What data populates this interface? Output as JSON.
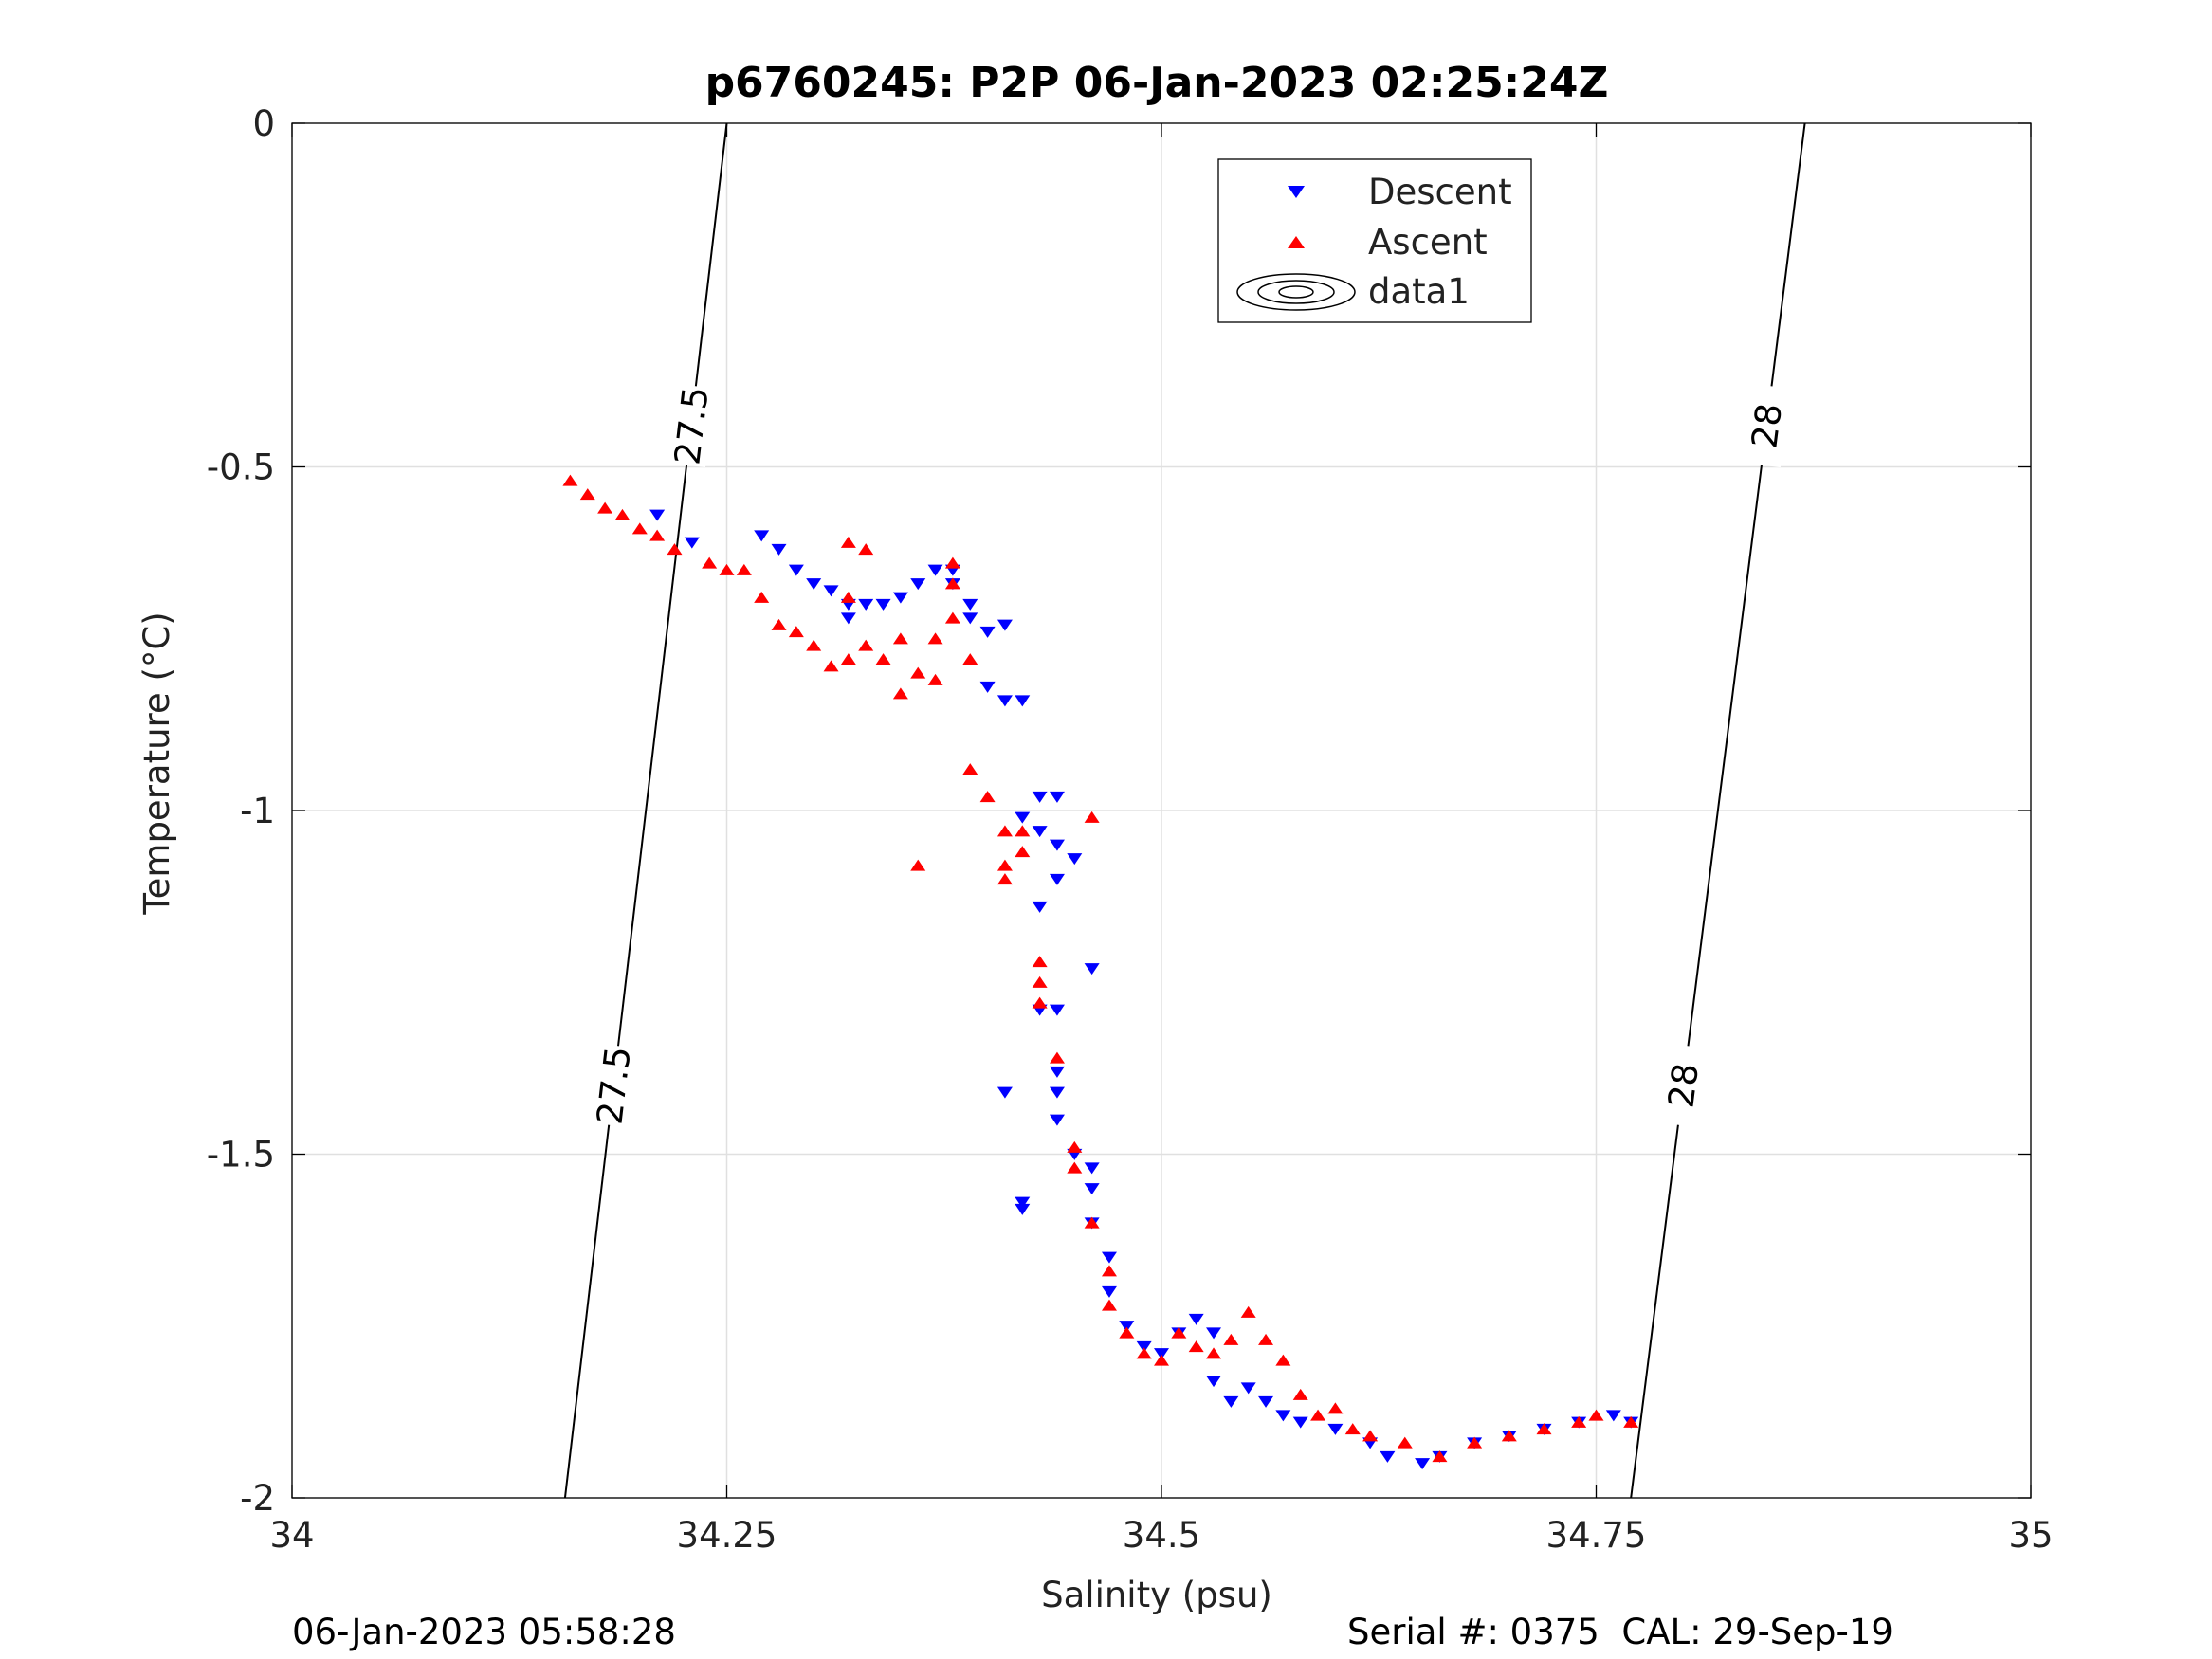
{
  "chart_data": {
    "type": "scatter",
    "title": "p6760245: P2P 06-Jan-2023 02:25:24Z",
    "xlabel": "Salinity (psu)",
    "ylabel": "Temperature (°C)",
    "xlim": [
      34,
      35
    ],
    "ylim": [
      -2,
      0
    ],
    "x_ticks": [
      34,
      34.25,
      34.5,
      34.75,
      35
    ],
    "x_tick_labels": [
      "34",
      "34.25",
      "34.5",
      "34.75",
      "35"
    ],
    "y_ticks": [
      0,
      -0.5,
      -1,
      -1.5,
      -2
    ],
    "y_tick_labels": [
      "0",
      "-0.5",
      "-1",
      "-1.5",
      "-2"
    ],
    "grid": true,
    "legend_position": "top-right",
    "series": [
      {
        "name": "Descent",
        "marker": "triangle-down",
        "color": "#0000ff",
        "points": [
          [
            34.21,
            -0.57
          ],
          [
            34.23,
            -0.61
          ],
          [
            34.27,
            -0.6
          ],
          [
            34.28,
            -0.62
          ],
          [
            34.29,
            -0.65
          ],
          [
            34.3,
            -0.67
          ],
          [
            34.31,
            -0.68
          ],
          [
            34.32,
            -0.7
          ],
          [
            34.32,
            -0.72
          ],
          [
            34.33,
            -0.7
          ],
          [
            34.34,
            -0.7
          ],
          [
            34.35,
            -0.69
          ],
          [
            34.36,
            -0.67
          ],
          [
            34.37,
            -0.65
          ],
          [
            34.38,
            -0.65
          ],
          [
            34.38,
            -0.67
          ],
          [
            34.39,
            -0.7
          ],
          [
            34.39,
            -0.72
          ],
          [
            34.4,
            -0.74
          ],
          [
            34.41,
            -0.73
          ],
          [
            34.4,
            -0.82
          ],
          [
            34.41,
            -0.84
          ],
          [
            34.42,
            -0.84
          ],
          [
            34.43,
            -0.98
          ],
          [
            34.44,
            -0.98
          ],
          [
            34.42,
            -1.01
          ],
          [
            34.43,
            -1.03
          ],
          [
            34.44,
            -1.05
          ],
          [
            34.45,
            -1.07
          ],
          [
            34.44,
            -1.1
          ],
          [
            34.43,
            -1.14
          ],
          [
            34.43,
            -1.29
          ],
          [
            34.44,
            -1.29
          ],
          [
            34.46,
            -1.23
          ],
          [
            34.41,
            -1.41
          ],
          [
            34.44,
            -1.38
          ],
          [
            34.44,
            -1.41
          ],
          [
            34.44,
            -1.45
          ],
          [
            34.45,
            -1.5
          ],
          [
            34.46,
            -1.52
          ],
          [
            34.46,
            -1.55
          ],
          [
            34.42,
            -1.57
          ],
          [
            34.42,
            -1.58
          ],
          [
            34.46,
            -1.6
          ],
          [
            34.47,
            -1.65
          ],
          [
            34.47,
            -1.7
          ],
          [
            34.48,
            -1.75
          ],
          [
            34.49,
            -1.78
          ],
          [
            34.5,
            -1.79
          ],
          [
            34.51,
            -1.76
          ],
          [
            34.52,
            -1.74
          ],
          [
            34.53,
            -1.76
          ],
          [
            34.53,
            -1.83
          ],
          [
            34.54,
            -1.86
          ],
          [
            34.55,
            -1.84
          ],
          [
            34.56,
            -1.86
          ],
          [
            34.57,
            -1.88
          ],
          [
            34.58,
            -1.89
          ],
          [
            34.6,
            -1.9
          ],
          [
            34.62,
            -1.92
          ],
          [
            34.63,
            -1.94
          ],
          [
            34.65,
            -1.95
          ],
          [
            34.66,
            -1.94
          ],
          [
            34.68,
            -1.92
          ],
          [
            34.7,
            -1.91
          ],
          [
            34.72,
            -1.9
          ],
          [
            34.74,
            -1.89
          ],
          [
            34.76,
            -1.88
          ],
          [
            34.77,
            -1.89
          ]
        ]
      },
      {
        "name": "Ascent",
        "marker": "triangle-up",
        "color": "#ff0000",
        "points": [
          [
            34.16,
            -0.52
          ],
          [
            34.17,
            -0.54
          ],
          [
            34.18,
            -0.56
          ],
          [
            34.19,
            -0.57
          ],
          [
            34.2,
            -0.59
          ],
          [
            34.21,
            -0.6
          ],
          [
            34.22,
            -0.62
          ],
          [
            34.24,
            -0.64
          ],
          [
            34.25,
            -0.65
          ],
          [
            34.26,
            -0.65
          ],
          [
            34.27,
            -0.69
          ],
          [
            34.28,
            -0.73
          ],
          [
            34.29,
            -0.74
          ],
          [
            34.3,
            -0.76
          ],
          [
            34.31,
            -0.79
          ],
          [
            34.32,
            -0.78
          ],
          [
            34.32,
            -0.61
          ],
          [
            34.33,
            -0.62
          ],
          [
            34.32,
            -0.69
          ],
          [
            34.33,
            -0.76
          ],
          [
            34.34,
            -0.78
          ],
          [
            34.35,
            -0.75
          ],
          [
            34.35,
            -0.83
          ],
          [
            34.36,
            -0.8
          ],
          [
            34.37,
            -0.81
          ],
          [
            34.37,
            -0.75
          ],
          [
            34.38,
            -0.72
          ],
          [
            34.38,
            -0.67
          ],
          [
            34.38,
            -0.64
          ],
          [
            34.39,
            -0.78
          ],
          [
            34.39,
            -0.94
          ],
          [
            34.4,
            -0.98
          ],
          [
            34.41,
            -1.03
          ],
          [
            34.41,
            -1.08
          ],
          [
            34.42,
            -1.06
          ],
          [
            34.41,
            -1.1
          ],
          [
            34.42,
            -1.03
          ],
          [
            34.36,
            -1.08
          ],
          [
            34.46,
            -1.01
          ],
          [
            34.43,
            -1.22
          ],
          [
            34.43,
            -1.25
          ],
          [
            34.43,
            -1.28
          ],
          [
            34.44,
            -1.36
          ],
          [
            34.45,
            -1.49
          ],
          [
            34.45,
            -1.52
          ],
          [
            34.46,
            -1.6
          ],
          [
            34.47,
            -1.67
          ],
          [
            34.47,
            -1.72
          ],
          [
            34.48,
            -1.76
          ],
          [
            34.49,
            -1.79
          ],
          [
            34.5,
            -1.8
          ],
          [
            34.51,
            -1.76
          ],
          [
            34.52,
            -1.78
          ],
          [
            34.53,
            -1.79
          ],
          [
            34.54,
            -1.77
          ],
          [
            34.55,
            -1.73
          ],
          [
            34.56,
            -1.77
          ],
          [
            34.57,
            -1.8
          ],
          [
            34.58,
            -1.85
          ],
          [
            34.59,
            -1.88
          ],
          [
            34.6,
            -1.87
          ],
          [
            34.61,
            -1.9
          ],
          [
            34.62,
            -1.91
          ],
          [
            34.64,
            -1.92
          ],
          [
            34.66,
            -1.94
          ],
          [
            34.68,
            -1.92
          ],
          [
            34.7,
            -1.91
          ],
          [
            34.72,
            -1.9
          ],
          [
            34.74,
            -1.89
          ],
          [
            34.75,
            -1.88
          ],
          [
            34.77,
            -1.89
          ]
        ]
      }
    ],
    "isopycnals": [
      {
        "label": "27.5",
        "points": [
          [
            34.157,
            -2
          ],
          [
            34.25,
            0
          ]
        ]
      },
      {
        "label": "28",
        "points": [
          [
            34.77,
            -2
          ],
          [
            34.87,
            0
          ]
        ]
      }
    ],
    "legend": {
      "descent_label": "Descent",
      "ascent_label": "Ascent",
      "contour_label": "data1"
    }
  },
  "footer": {
    "timestamp": "06-Jan-2023 05:58:28",
    "serial": "Serial #: 0375  CAL: 29-Sep-19"
  }
}
